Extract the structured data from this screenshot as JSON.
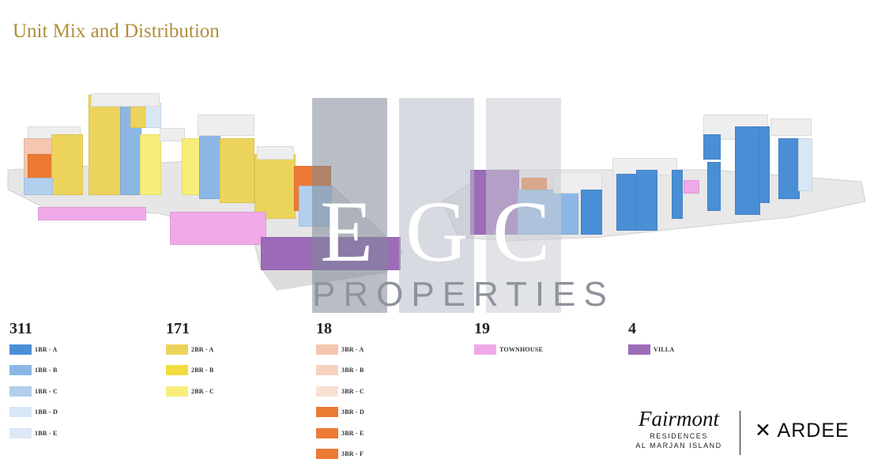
{
  "title": "Unit Mix and Distribution",
  "colors": {
    "1BR-A": "#4a8ed6",
    "1BR-B": "#8cb7e5",
    "1BR-C": "#b2cfed",
    "1BR-D": "#d8e7f6",
    "1BR-E": "#dce8f5",
    "2BR-A": "#ecd45c",
    "2BR-B": "#f1dc40",
    "2BR-C": "#f7ee7a",
    "3BR-A": "#f5c6b0",
    "3BR-B": "#f7d2c0",
    "3BR-C": "#fae0d3",
    "3BR-D": "#ec7a34",
    "3BR-E": "#ec7a34",
    "3BR-F": "#ec7a34",
    "townhouse": "#f0a9e8",
    "villa": "#9c6cb8",
    "title": "#b08f3a"
  },
  "legend": [
    {
      "count": "311",
      "items": [
        {
          "label": "1BR - A",
          "key": "1BR-A"
        },
        {
          "label": "1BR - B",
          "key": "1BR-B"
        },
        {
          "label": "1BR - C",
          "key": "1BR-C"
        },
        {
          "label": "1BR - D",
          "key": "1BR-D"
        },
        {
          "label": "1BR - E",
          "key": "1BR-E"
        }
      ]
    },
    {
      "count": "171",
      "items": [
        {
          "label": "2BR - A",
          "key": "2BR-A"
        },
        {
          "label": "2BR - B",
          "key": "2BR-B"
        },
        {
          "label": "2BR - C",
          "key": "2BR-C"
        }
      ]
    },
    {
      "count": "18",
      "items": [
        {
          "label": "3BR - A",
          "key": "3BR-A"
        },
        {
          "label": "3BR - B",
          "key": "3BR-B"
        },
        {
          "label": "3BR - C",
          "key": "3BR-C"
        },
        {
          "label": "3BR - D",
          "key": "3BR-D"
        },
        {
          "label": "3BR - E",
          "key": "3BR-E"
        },
        {
          "label": "3BR - F",
          "key": "3BR-F"
        }
      ]
    },
    {
      "count": "19",
      "items": [
        {
          "label": "TOWNHOUSE",
          "key": "townhouse"
        }
      ]
    },
    {
      "count": "4",
      "items": [
        {
          "label": "VILLA",
          "key": "villa"
        }
      ]
    }
  ],
  "watermark": {
    "letters": [
      "E",
      "G",
      "C"
    ],
    "subtitle": "PROPERTIES"
  },
  "logos": {
    "fairmont": "Fairmont",
    "fairmont_sub1": "RESIDENCES",
    "fairmont_sub2": "AL MARJAN ISLAND",
    "ardee": "ARDEE"
  }
}
